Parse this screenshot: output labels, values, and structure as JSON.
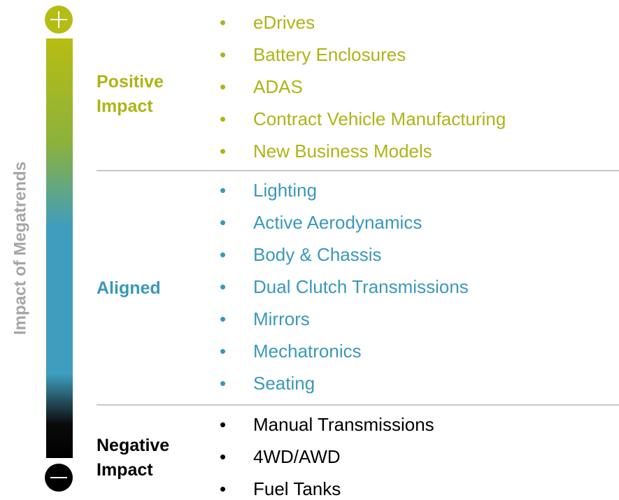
{
  "axis_label": "Impact of Megatrends",
  "groups": [
    {
      "label": "Positive Impact",
      "items": [
        "eDrives",
        "Battery Enclosures",
        "ADAS",
        "Contract Vehicle Manufacturing",
        "New Business Models"
      ]
    },
    {
      "label": "Aligned",
      "items": [
        "Lighting",
        "Active Aerodynamics",
        "Body & Chassis",
        "Dual Clutch Transmissions",
        "Mirrors",
        "Mechatronics",
        "Seating"
      ]
    },
    {
      "label": "Negative Impact",
      "items": [
        "Manual Transmissions",
        "4WD/AWD",
        "Fuel Tanks"
      ]
    }
  ]
}
